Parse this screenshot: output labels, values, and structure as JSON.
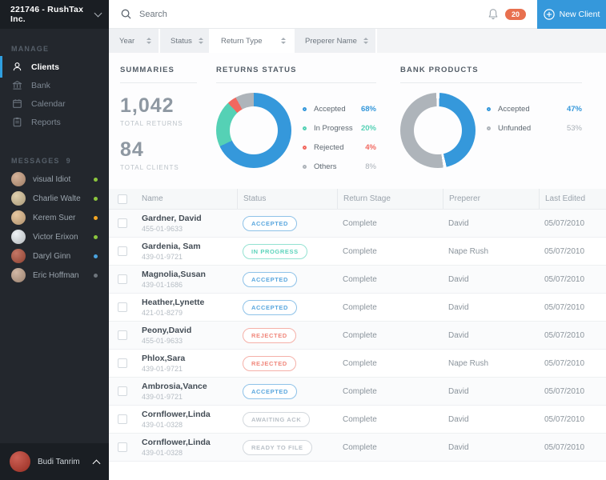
{
  "topbar": {
    "search_placeholder": "Search",
    "notification_count": "20",
    "new_client_label": "New Client"
  },
  "sidebar": {
    "company": "221746 - RushTax Inc.",
    "manage_title": "MANAGE",
    "nav": [
      {
        "label": "Clients",
        "icon": "user-icon",
        "active": true
      },
      {
        "label": "Bank",
        "icon": "bank-icon",
        "active": false
      },
      {
        "label": "Calendar",
        "icon": "calendar-icon",
        "active": false
      },
      {
        "label": "Reports",
        "icon": "reports-icon",
        "active": false
      }
    ],
    "messages_title": "MESSAGES",
    "messages_count": "9",
    "messages": [
      {
        "name": "visual Idiot",
        "dot": "#8CC63E",
        "avatar": "#caa081"
      },
      {
        "name": "Charlie Walte",
        "dot": "#8CC63E",
        "avatar": "#d8c49a"
      },
      {
        "name": "Kerem Suer",
        "dot": "#F5A623",
        "avatar": "#e0b98a"
      },
      {
        "name": "Victor Erixon",
        "dot": "#8CC63E",
        "avatar": "#e8eef2"
      },
      {
        "name": "Daryl Ginn",
        "dot": "#4AA3DF",
        "avatar": "#b5543f"
      },
      {
        "name": "Eric Hoffman",
        "dot": "#6E757C",
        "avatar": "#c5a58e"
      }
    ],
    "user": {
      "name": "Budi Tanrim",
      "avatar": "#c0392b"
    }
  },
  "filters": [
    {
      "label": "Year",
      "selected": false
    },
    {
      "label": "Status",
      "selected": false
    },
    {
      "label": "Return Type",
      "selected": true
    },
    {
      "label": "Preperer Name",
      "selected": false
    }
  ],
  "summaries": {
    "title": "SUMMARIES",
    "stats": [
      {
        "value": "1,042",
        "label": "TOTAL RETURNS"
      },
      {
        "value": "84",
        "label": "TOTAL CLIENTS"
      }
    ]
  },
  "chart_data": [
    {
      "type": "pie",
      "donut": true,
      "title": "RETURNS STATUS",
      "legend_position": "right",
      "gap_deg": 0,
      "slices": [
        {
          "label": "Accepted",
          "value": 68,
          "display": "68%",
          "color": "#3598DB",
          "muted": false
        },
        {
          "label": "In Progress",
          "value": 20,
          "display": "20%",
          "color": "#55D1B5",
          "muted": false
        },
        {
          "label": "Rejected",
          "value": 4,
          "display": "4%",
          "color": "#F2685F",
          "muted": false
        },
        {
          "label": "Others",
          "value": 8,
          "display": "8%",
          "color": "#AEB4BA",
          "muted": true
        }
      ]
    },
    {
      "type": "pie",
      "donut": true,
      "title": "BANK PRODUCTS",
      "legend_position": "right",
      "gap_deg": 5,
      "slices": [
        {
          "label": "Accepted",
          "value": 47,
          "display": "47%",
          "color": "#3598DB",
          "muted": false
        },
        {
          "label": "Unfunded",
          "value": 53,
          "display": "53%",
          "color": "#AEB4BA",
          "muted": true
        }
      ]
    }
  ],
  "table": {
    "columns": [
      "Name",
      "Status",
      "Return Stage",
      "Preperer",
      "Last Edited"
    ],
    "rows": [
      {
        "name": "Gardner, David",
        "ssn": "455-01-9633",
        "status": "ACCEPTED",
        "style": "blue",
        "stage": "Complete",
        "preperer": "David",
        "edited": "05/07/2010"
      },
      {
        "name": "Gardenia, Sam",
        "ssn": "439-01-9721",
        "status": "IN PROGRESS",
        "style": "teal",
        "stage": "Complete",
        "preperer": "Nape Rush",
        "edited": "05/07/2010"
      },
      {
        "name": "Magnolia,Susan",
        "ssn": "439-01-1686",
        "status": "ACCEPTED",
        "style": "blue",
        "stage": "Complete",
        "preperer": "David",
        "edited": "05/07/2010"
      },
      {
        "name": "Heather,Lynette",
        "ssn": "421-01-8279",
        "status": "ACCEPTED",
        "style": "blue",
        "stage": "Complete",
        "preperer": "David",
        "edited": "05/07/2010"
      },
      {
        "name": "Peony,David",
        "ssn": "455-01-9633",
        "status": "REJECTED",
        "style": "red",
        "stage": "Complete",
        "preperer": "David",
        "edited": "05/07/2010"
      },
      {
        "name": "Phlox,Sara",
        "ssn": "439-01-9721",
        "status": "REJECTED",
        "style": "red",
        "stage": "Complete",
        "preperer": "Nape Rush",
        "edited": "05/07/2010"
      },
      {
        "name": "Ambrosia,Vance",
        "ssn": "439-01-9721",
        "status": "ACCEPTED",
        "style": "blue",
        "stage": "Complete",
        "preperer": "David",
        "edited": "05/07/2010"
      },
      {
        "name": "Cornflower,Linda",
        "ssn": "439-01-0328",
        "status": "AWAITING ACK",
        "style": "gray",
        "stage": "Complete",
        "preperer": "David",
        "edited": "05/07/2010"
      },
      {
        "name": "Cornflower,Linda",
        "ssn": "439-01-0328",
        "status": "READY TO FILE",
        "style": "gray",
        "stage": "Complete",
        "preperer": "David",
        "edited": "05/07/2010"
      }
    ]
  }
}
